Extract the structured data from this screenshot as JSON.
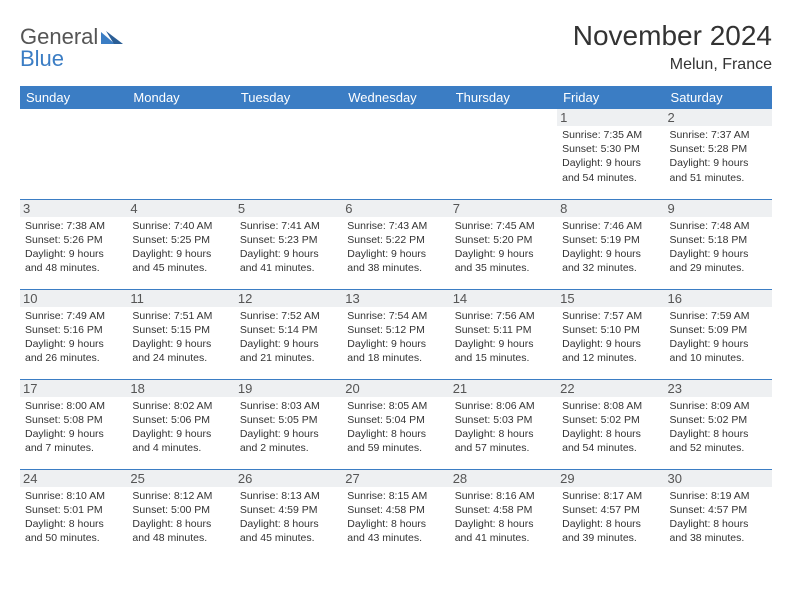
{
  "brand": {
    "t1": "General",
    "t2": "Blue"
  },
  "title": "November 2024",
  "location": "Melun, France",
  "colors": {
    "header_bg": "#3b7dc4",
    "header_text": "#ffffff",
    "border": "#3b7dc4",
    "daynum_bg": "#eef0f2",
    "page_bg": "#ffffff",
    "text": "#333333",
    "brand_gray": "#555555",
    "brand_blue": "#3b7dc4"
  },
  "day_headers": [
    "Sunday",
    "Monday",
    "Tuesday",
    "Wednesday",
    "Thursday",
    "Friday",
    "Saturday"
  ],
  "weeks": [
    [
      {
        "n": "",
        "sr": "",
        "ss": "",
        "dl": "",
        "empty": true
      },
      {
        "n": "",
        "sr": "",
        "ss": "",
        "dl": "",
        "empty": true
      },
      {
        "n": "",
        "sr": "",
        "ss": "",
        "dl": "",
        "empty": true
      },
      {
        "n": "",
        "sr": "",
        "ss": "",
        "dl": "",
        "empty": true
      },
      {
        "n": "",
        "sr": "",
        "ss": "",
        "dl": "",
        "empty": true
      },
      {
        "n": "1",
        "sr": "Sunrise: 7:35 AM",
        "ss": "Sunset: 5:30 PM",
        "dl": "Daylight: 9 hours and 54 minutes."
      },
      {
        "n": "2",
        "sr": "Sunrise: 7:37 AM",
        "ss": "Sunset: 5:28 PM",
        "dl": "Daylight: 9 hours and 51 minutes."
      }
    ],
    [
      {
        "n": "3",
        "sr": "Sunrise: 7:38 AM",
        "ss": "Sunset: 5:26 PM",
        "dl": "Daylight: 9 hours and 48 minutes."
      },
      {
        "n": "4",
        "sr": "Sunrise: 7:40 AM",
        "ss": "Sunset: 5:25 PM",
        "dl": "Daylight: 9 hours and 45 minutes."
      },
      {
        "n": "5",
        "sr": "Sunrise: 7:41 AM",
        "ss": "Sunset: 5:23 PM",
        "dl": "Daylight: 9 hours and 41 minutes."
      },
      {
        "n": "6",
        "sr": "Sunrise: 7:43 AM",
        "ss": "Sunset: 5:22 PM",
        "dl": "Daylight: 9 hours and 38 minutes."
      },
      {
        "n": "7",
        "sr": "Sunrise: 7:45 AM",
        "ss": "Sunset: 5:20 PM",
        "dl": "Daylight: 9 hours and 35 minutes."
      },
      {
        "n": "8",
        "sr": "Sunrise: 7:46 AM",
        "ss": "Sunset: 5:19 PM",
        "dl": "Daylight: 9 hours and 32 minutes."
      },
      {
        "n": "9",
        "sr": "Sunrise: 7:48 AM",
        "ss": "Sunset: 5:18 PM",
        "dl": "Daylight: 9 hours and 29 minutes."
      }
    ],
    [
      {
        "n": "10",
        "sr": "Sunrise: 7:49 AM",
        "ss": "Sunset: 5:16 PM",
        "dl": "Daylight: 9 hours and 26 minutes."
      },
      {
        "n": "11",
        "sr": "Sunrise: 7:51 AM",
        "ss": "Sunset: 5:15 PM",
        "dl": "Daylight: 9 hours and 24 minutes."
      },
      {
        "n": "12",
        "sr": "Sunrise: 7:52 AM",
        "ss": "Sunset: 5:14 PM",
        "dl": "Daylight: 9 hours and 21 minutes."
      },
      {
        "n": "13",
        "sr": "Sunrise: 7:54 AM",
        "ss": "Sunset: 5:12 PM",
        "dl": "Daylight: 9 hours and 18 minutes."
      },
      {
        "n": "14",
        "sr": "Sunrise: 7:56 AM",
        "ss": "Sunset: 5:11 PM",
        "dl": "Daylight: 9 hours and 15 minutes."
      },
      {
        "n": "15",
        "sr": "Sunrise: 7:57 AM",
        "ss": "Sunset: 5:10 PM",
        "dl": "Daylight: 9 hours and 12 minutes."
      },
      {
        "n": "16",
        "sr": "Sunrise: 7:59 AM",
        "ss": "Sunset: 5:09 PM",
        "dl": "Daylight: 9 hours and 10 minutes."
      }
    ],
    [
      {
        "n": "17",
        "sr": "Sunrise: 8:00 AM",
        "ss": "Sunset: 5:08 PM",
        "dl": "Daylight: 9 hours and 7 minutes."
      },
      {
        "n": "18",
        "sr": "Sunrise: 8:02 AM",
        "ss": "Sunset: 5:06 PM",
        "dl": "Daylight: 9 hours and 4 minutes."
      },
      {
        "n": "19",
        "sr": "Sunrise: 8:03 AM",
        "ss": "Sunset: 5:05 PM",
        "dl": "Daylight: 9 hours and 2 minutes."
      },
      {
        "n": "20",
        "sr": "Sunrise: 8:05 AM",
        "ss": "Sunset: 5:04 PM",
        "dl": "Daylight: 8 hours and 59 minutes."
      },
      {
        "n": "21",
        "sr": "Sunrise: 8:06 AM",
        "ss": "Sunset: 5:03 PM",
        "dl": "Daylight: 8 hours and 57 minutes."
      },
      {
        "n": "22",
        "sr": "Sunrise: 8:08 AM",
        "ss": "Sunset: 5:02 PM",
        "dl": "Daylight: 8 hours and 54 minutes."
      },
      {
        "n": "23",
        "sr": "Sunrise: 8:09 AM",
        "ss": "Sunset: 5:02 PM",
        "dl": "Daylight: 8 hours and 52 minutes."
      }
    ],
    [
      {
        "n": "24",
        "sr": "Sunrise: 8:10 AM",
        "ss": "Sunset: 5:01 PM",
        "dl": "Daylight: 8 hours and 50 minutes."
      },
      {
        "n": "25",
        "sr": "Sunrise: 8:12 AM",
        "ss": "Sunset: 5:00 PM",
        "dl": "Daylight: 8 hours and 48 minutes."
      },
      {
        "n": "26",
        "sr": "Sunrise: 8:13 AM",
        "ss": "Sunset: 4:59 PM",
        "dl": "Daylight: 8 hours and 45 minutes."
      },
      {
        "n": "27",
        "sr": "Sunrise: 8:15 AM",
        "ss": "Sunset: 4:58 PM",
        "dl": "Daylight: 8 hours and 43 minutes."
      },
      {
        "n": "28",
        "sr": "Sunrise: 8:16 AM",
        "ss": "Sunset: 4:58 PM",
        "dl": "Daylight: 8 hours and 41 minutes."
      },
      {
        "n": "29",
        "sr": "Sunrise: 8:17 AM",
        "ss": "Sunset: 4:57 PM",
        "dl": "Daylight: 8 hours and 39 minutes."
      },
      {
        "n": "30",
        "sr": "Sunrise: 8:19 AM",
        "ss": "Sunset: 4:57 PM",
        "dl": "Daylight: 8 hours and 38 minutes."
      }
    ]
  ]
}
